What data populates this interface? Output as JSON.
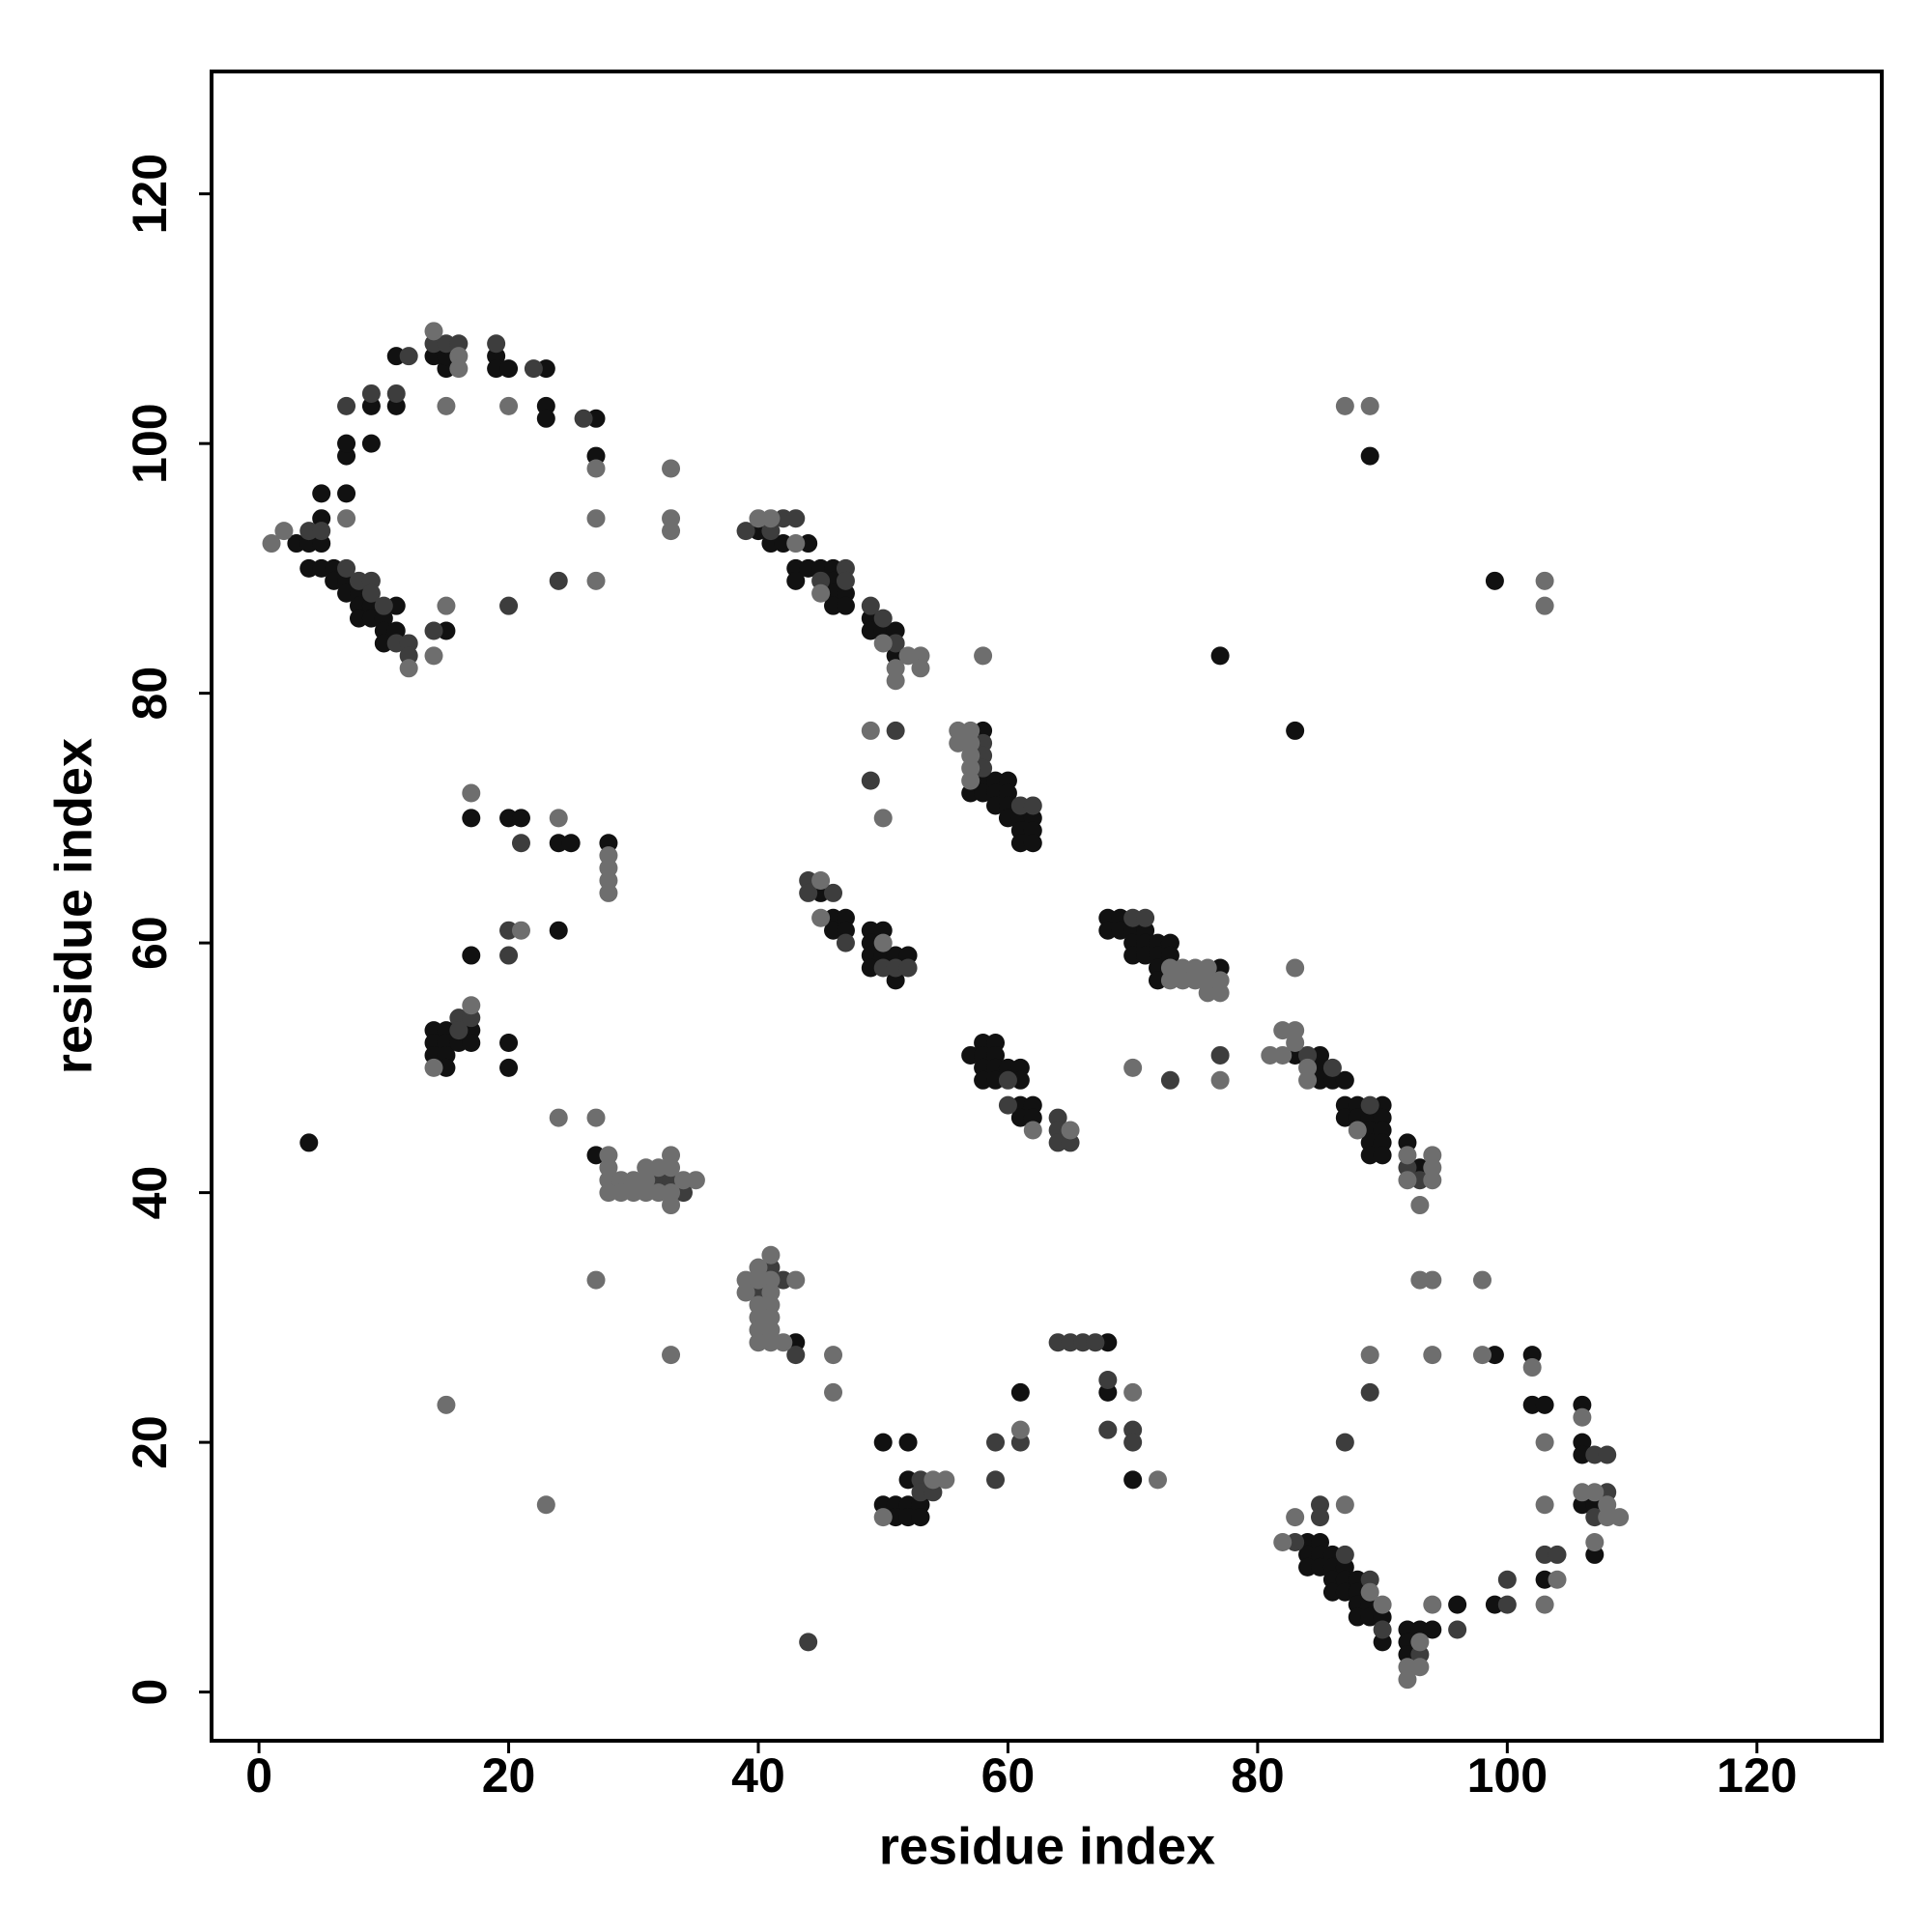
{
  "chart_data": {
    "type": "scatter",
    "xlabel": "residue index",
    "ylabel": "residue index",
    "xlim": [
      -3.8,
      130
    ],
    "ylim": [
      -3.9,
      129.8
    ],
    "xticks": [
      0,
      20,
      40,
      60,
      80,
      100,
      120
    ],
    "yticks": [
      0,
      20,
      40,
      60,
      80,
      100,
      120
    ],
    "series": [
      {
        "color": "#111111",
        "x": [
          3,
          4,
          5,
          5,
          5,
          4,
          5,
          6,
          6,
          7,
          7,
          8,
          8,
          8,
          9,
          9,
          10,
          10,
          10,
          11,
          11,
          15,
          7,
          7,
          7,
          9,
          9,
          11,
          11,
          14,
          15,
          15,
          19,
          19,
          20,
          23,
          23,
          23,
          27,
          27,
          40,
          41,
          42,
          44,
          43,
          43,
          44,
          45,
          46,
          46,
          46,
          46,
          47,
          47,
          49,
          49,
          50,
          51,
          51,
          57,
          58,
          58,
          58,
          59,
          59,
          59,
          60,
          60,
          60,
          60,
          61,
          61,
          61,
          62,
          62,
          62,
          77,
          83,
          45,
          46,
          46,
          47,
          47,
          49,
          49,
          49,
          49,
          50,
          50,
          51,
          51,
          52,
          68,
          68,
          69,
          69,
          70,
          70,
          70,
          71,
          71,
          71,
          72,
          72,
          72,
          72,
          73,
          73,
          77,
          57,
          58,
          58,
          58,
          58,
          59,
          59,
          59,
          59,
          60,
          61,
          61,
          61,
          61,
          62,
          62,
          83,
          85,
          85,
          85,
          86,
          87,
          87,
          87,
          88,
          88,
          89,
          89,
          89,
          89,
          90,
          90,
          90,
          90,
          90,
          92,
          93,
          99,
          14,
          14,
          14,
          15,
          15,
          15,
          15,
          16,
          17,
          17,
          20,
          20,
          17,
          24,
          17,
          20,
          21,
          24,
          25,
          28,
          4,
          27,
          43,
          50,
          50,
          51,
          51,
          52,
          52,
          52,
          52,
          53,
          53,
          61,
          68,
          68,
          70,
          84,
          84,
          84,
          85,
          85,
          85,
          86,
          86,
          86,
          86,
          87,
          87,
          87,
          88,
          88,
          88,
          88,
          89,
          89,
          90,
          90,
          92,
          92,
          92,
          93,
          94,
          96,
          99,
          102,
          102,
          103,
          103,
          106,
          106,
          106,
          106,
          107,
          107,
          89,
          99
        ],
        "values": [
          92,
          92,
          92,
          94,
          96,
          90,
          90,
          90,
          89,
          89,
          88,
          88,
          87,
          86,
          87,
          86,
          86,
          85,
          84,
          85,
          87,
          85,
          96,
          99,
          100,
          103,
          100,
          103,
          107,
          107,
          106,
          107,
          107,
          106,
          106,
          106,
          103,
          102,
          102,
          99,
          93,
          92,
          92,
          92,
          90,
          89,
          90,
          90,
          90,
          89,
          88,
          87,
          88,
          87,
          86,
          85,
          85,
          85,
          83,
          72,
          77,
          73,
          72,
          73,
          72,
          71,
          73,
          72,
          71,
          70,
          70,
          69,
          68,
          70,
          69,
          68,
          83,
          77,
          64,
          62,
          61,
          62,
          61,
          61,
          60,
          59,
          58,
          61,
          59,
          59,
          57,
          59,
          62,
          61,
          62,
          61,
          61,
          60,
          59,
          61,
          60,
          59,
          60,
          59,
          58,
          57,
          60,
          59,
          58,
          51,
          52,
          51,
          50,
          49,
          52,
          51,
          50,
          49,
          50,
          50,
          49,
          47,
          46,
          47,
          46,
          51,
          51,
          50,
          49,
          49,
          49,
          47,
          46,
          47,
          46,
          46,
          45,
          44,
          43,
          47,
          46,
          45,
          44,
          43,
          44,
          42,
          27,
          53,
          52,
          51,
          53,
          52,
          51,
          50,
          52,
          53,
          52,
          52,
          50,
          59,
          61,
          70,
          70,
          70,
          68,
          68,
          68,
          44,
          43,
          28,
          20,
          15,
          15,
          14,
          20,
          17,
          15,
          14,
          15,
          14,
          24,
          28,
          24,
          17,
          12,
          11,
          10,
          12,
          11,
          10,
          11,
          10,
          9,
          8,
          10,
          9,
          8,
          9,
          8,
          7,
          6,
          7,
          6,
          6,
          4,
          5,
          4,
          3,
          5,
          5,
          7,
          7,
          27,
          23,
          23,
          9,
          23,
          20,
          19,
          15,
          15,
          11,
          99,
          89
        ]
      },
      {
        "color": "#3d3d3d",
        "x": [
          4,
          5,
          7,
          8,
          9,
          9,
          10,
          11,
          12,
          12,
          14,
          7,
          9,
          11,
          12,
          14,
          15,
          16,
          19,
          22,
          26,
          24,
          20,
          39,
          41,
          42,
          43,
          45,
          47,
          47,
          49,
          50,
          51,
          49,
          51,
          58,
          58,
          58,
          61,
          62,
          44,
          44,
          46,
          47,
          50,
          51,
          52,
          70,
          71,
          77,
          73,
          60,
          60,
          64,
          64,
          64,
          65,
          84,
          86,
          89,
          92,
          93,
          16,
          16,
          17,
          20,
          20,
          21,
          32,
          33,
          34,
          40,
          41,
          42,
          43,
          44,
          53,
          53,
          54,
          59,
          59,
          61,
          64,
          65,
          66,
          67,
          68,
          68,
          70,
          70,
          83,
          85,
          85,
          87,
          87,
          89,
          89,
          90,
          93,
          96,
          100,
          100,
          103,
          104,
          107,
          107,
          108,
          108
        ],
        "values": [
          93,
          93,
          90,
          89,
          89,
          88,
          87,
          84,
          84,
          83,
          85,
          103,
          104,
          104,
          107,
          108,
          108,
          108,
          108,
          106,
          102,
          89,
          87,
          93,
          93,
          94,
          94,
          89,
          90,
          89,
          87,
          86,
          84,
          73,
          77,
          76,
          75,
          74,
          71,
          71,
          65,
          64,
          64,
          60,
          58,
          58,
          58,
          62,
          62,
          51,
          49,
          49,
          47,
          46,
          45,
          44,
          44,
          51,
          50,
          47,
          42,
          41,
          54,
          53,
          54,
          61,
          59,
          68,
          41,
          41,
          40,
          32,
          34,
          33,
          27,
          4,
          17,
          16,
          16,
          20,
          17,
          20,
          28,
          28,
          28,
          28,
          25,
          21,
          21,
          20,
          12,
          15,
          14,
          20,
          11,
          9,
          24,
          5,
          3,
          5,
          9,
          7,
          11,
          11,
          19,
          14,
          19,
          16
        ]
      },
      {
        "color": "#6e6e6e",
        "x": [
          1,
          2,
          12,
          14,
          15,
          7,
          14,
          16,
          16,
          15,
          20,
          27,
          27,
          27,
          33,
          33,
          33,
          40,
          41,
          43,
          45,
          50,
          51,
          51,
          52,
          53,
          53,
          49,
          50,
          56,
          56,
          57,
          57,
          57,
          57,
          57,
          58,
          45,
          45,
          50,
          73,
          73,
          74,
          74,
          75,
          75,
          76,
          76,
          76,
          77,
          77,
          77,
          70,
          83,
          62,
          65,
          81,
          82,
          82,
          83,
          83,
          84,
          84,
          88,
          92,
          92,
          93,
          94,
          94,
          94,
          93,
          94,
          98,
          94,
          98,
          14,
          17,
          17,
          21,
          24,
          28,
          28,
          28,
          28,
          24,
          27,
          28,
          28,
          28,
          28,
          29,
          29,
          30,
          30,
          31,
          31,
          31,
          32,
          32,
          33,
          33,
          33,
          33,
          34,
          35,
          27,
          33,
          39,
          39,
          40,
          40,
          40,
          40,
          40,
          40,
          41,
          41,
          41,
          41,
          41,
          41,
          41,
          42,
          43,
          46,
          46,
          15,
          23,
          50,
          54,
          55,
          61,
          70,
          72,
          82,
          83,
          87,
          89,
          89,
          90,
          92,
          92,
          93,
          93,
          94,
          102,
          103,
          103,
          103,
          104,
          106,
          106,
          107,
          107,
          108,
          108,
          109,
          87,
          89,
          103,
          103
        ],
        "values": [
          92,
          93,
          82,
          83,
          87,
          94,
          109,
          107,
          106,
          103,
          103,
          98,
          94,
          89,
          98,
          94,
          93,
          94,
          94,
          92,
          88,
          84,
          82,
          81,
          83,
          83,
          82,
          77,
          70,
          77,
          76,
          77,
          76,
          75,
          74,
          73,
          83,
          65,
          62,
          60,
          58,
          57,
          58,
          57,
          58,
          57,
          58,
          57,
          56,
          57,
          56,
          49,
          50,
          58,
          45,
          45,
          51,
          53,
          51,
          53,
          52,
          50,
          49,
          45,
          43,
          41,
          39,
          43,
          42,
          41,
          33,
          33,
          33,
          27,
          27,
          50,
          55,
          72,
          61,
          70,
          67,
          66,
          65,
          64,
          46,
          46,
          43,
          42,
          41,
          40,
          41,
          40,
          41,
          40,
          42,
          41,
          40,
          42,
          40,
          43,
          42,
          40,
          39,
          41,
          41,
          33,
          27,
          33,
          32,
          34,
          33,
          31,
          30,
          29,
          28,
          35,
          33,
          32,
          31,
          30,
          29,
          28,
          28,
          33,
          27,
          24,
          23,
          15,
          14,
          17,
          17,
          21,
          24,
          17,
          12,
          14,
          15,
          8,
          27,
          7,
          2,
          1,
          4,
          2,
          7,
          26,
          20,
          15,
          7,
          9,
          22,
          16,
          16,
          12,
          15,
          14,
          14,
          103,
          103,
          89,
          87
        ]
      }
    ]
  }
}
